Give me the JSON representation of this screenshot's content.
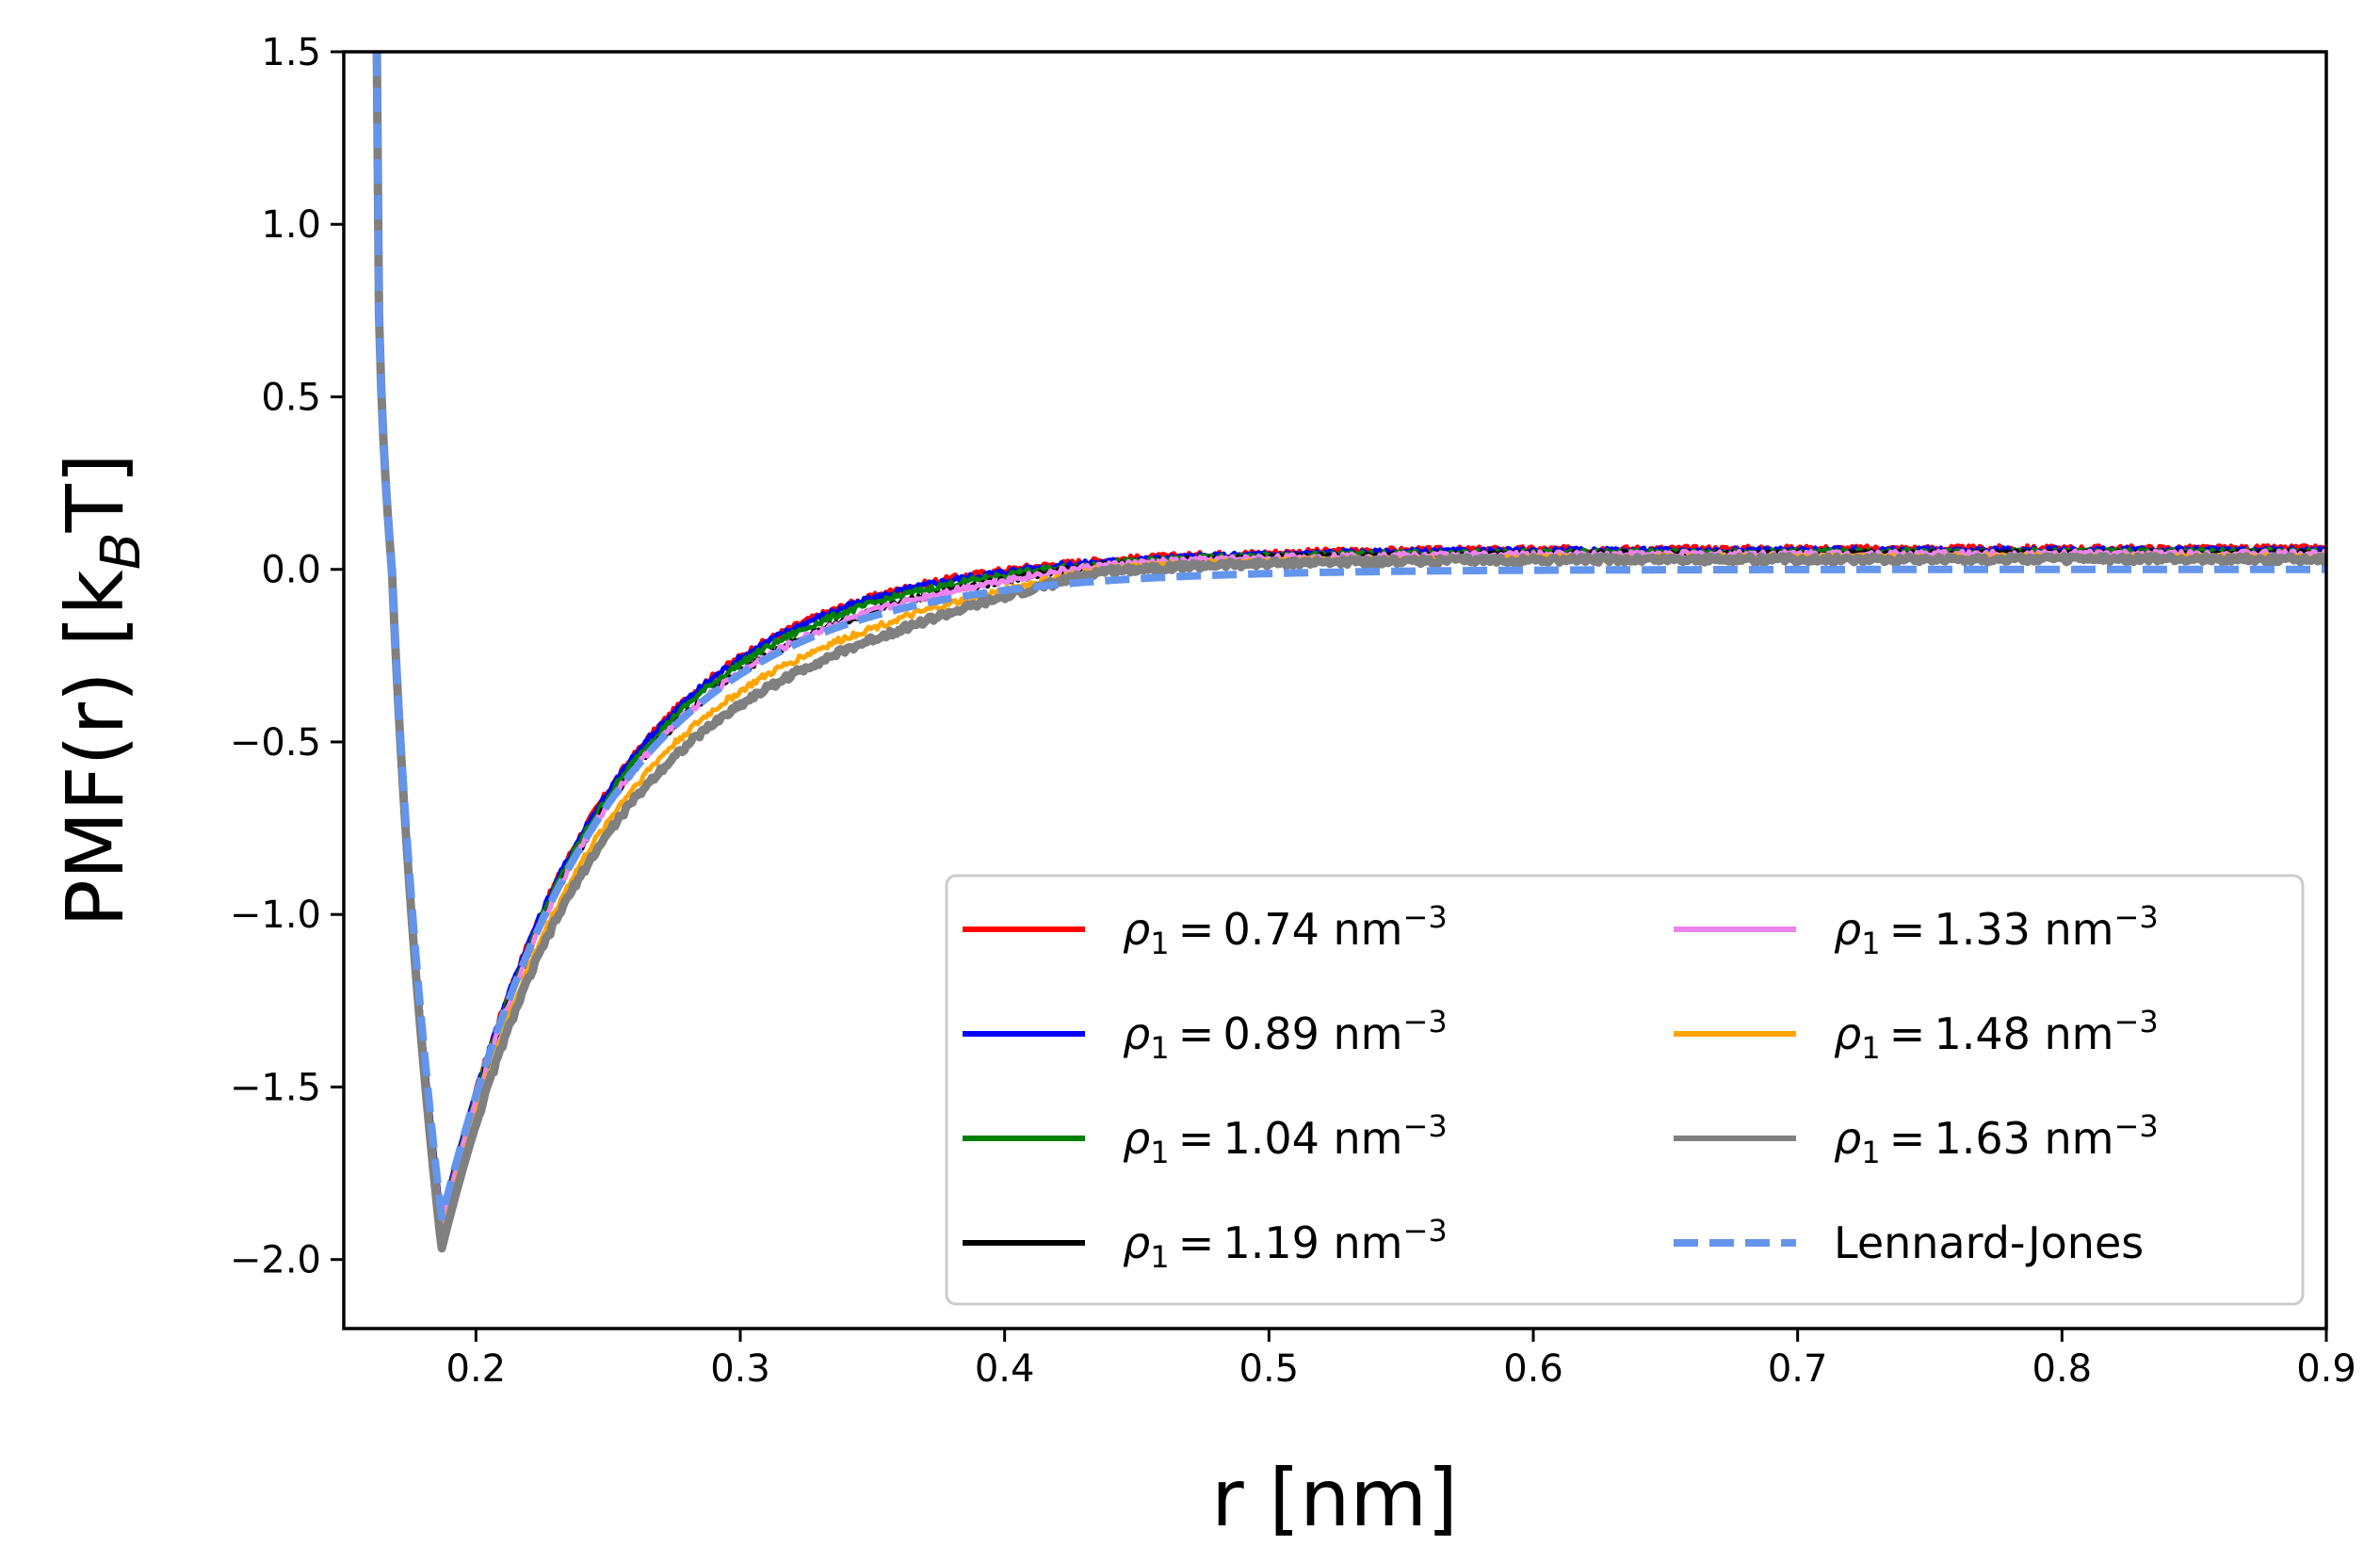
{
  "chart_data": {
    "type": "line",
    "xlabel": "r [nm]",
    "ylabel": "PMF(r) [k_B T]",
    "ylabel_parts": {
      "main": "PMF(r) [k",
      "sub": "B",
      "tail": "T]"
    },
    "xlim": [
      0.15,
      0.9
    ],
    "ylim": [
      -2.2,
      1.5
    ],
    "xticks": [
      0.2,
      0.3,
      0.4,
      0.5,
      0.6,
      0.7,
      0.8,
      0.9
    ],
    "yticks": [
      1.5,
      1.0,
      0.5,
      0.0,
      -0.5,
      -1.0,
      -1.5,
      -2.0
    ],
    "xtick_labels": [
      "0.2",
      "0.3",
      "0.4",
      "0.5",
      "0.6",
      "0.7",
      "0.8",
      "0.9"
    ],
    "ytick_labels": [
      "1.5",
      "1.0",
      "0.5",
      "0.0",
      "−0.5",
      "−1.0",
      "−1.5",
      "−2.0"
    ],
    "legend_position": "lower-right",
    "legend_columns": 2,
    "series": [
      {
        "name": "ρ₁ = 0.74 nm⁻³",
        "sym": "ρ",
        "sub": "1",
        "value": "0.74",
        "unit": "nm",
        "exp": "−3",
        "color": "#ff0000",
        "dashed": false,
        "plateau": 0.06,
        "depth": 1.88,
        "offset": 0.0
      },
      {
        "name": "ρ₁ = 0.89 nm⁻³",
        "sym": "ρ",
        "sub": "1",
        "value": "0.89",
        "unit": "nm",
        "exp": "−3",
        "color": "#0000ff",
        "dashed": false,
        "plateau": 0.055,
        "depth": 1.88,
        "offset": 0.0
      },
      {
        "name": "ρ₁ = 1.04 nm⁻³",
        "sym": "ρ",
        "sub": "1",
        "value": "1.04",
        "unit": "nm",
        "exp": "−3",
        "color": "#008000",
        "dashed": false,
        "plateau": 0.05,
        "depth": 1.89,
        "offset": -0.01
      },
      {
        "name": "ρ₁ = 1.19 nm⁻³",
        "sym": "ρ",
        "sub": "1",
        "value": "1.19",
        "unit": "nm",
        "exp": "−3",
        "color": "#000000",
        "dashed": false,
        "plateau": 0.045,
        "depth": 1.9,
        "offset": -0.03
      },
      {
        "name": "ρ₁ = 1.33 nm⁻³",
        "sym": "ρ",
        "sub": "1",
        "value": "1.33",
        "unit": "nm",
        "exp": "−3",
        "color": "#ee82ee",
        "dashed": false,
        "plateau": 0.045,
        "depth": 1.9,
        "offset": -0.03
      },
      {
        "name": "ρ₁ = 1.48 nm⁻³",
        "sym": "ρ",
        "sub": "1",
        "value": "1.48",
        "unit": "nm",
        "exp": "−3",
        "color": "#ffa500",
        "dashed": false,
        "plateau": 0.035,
        "depth": 1.94,
        "offset": -0.07
      },
      {
        "name": "ρ₁ = 1.63 nm⁻³",
        "sym": "ρ",
        "sub": "1",
        "value": "1.63",
        "unit": "nm",
        "exp": "−3",
        "color": "#808080",
        "dashed": false,
        "plateau": 0.03,
        "depth": 1.97,
        "offset": -0.1
      },
      {
        "name": "Lennard-Jones",
        "color": "#6495ed",
        "dashed": true,
        "plateau": 0.0,
        "depth": 1.88,
        "offset": 0.0
      }
    ],
    "model": {
      "r_min": 0.187,
      "r_start": 0.1625,
      "value_at_start": 1.5
    }
  }
}
